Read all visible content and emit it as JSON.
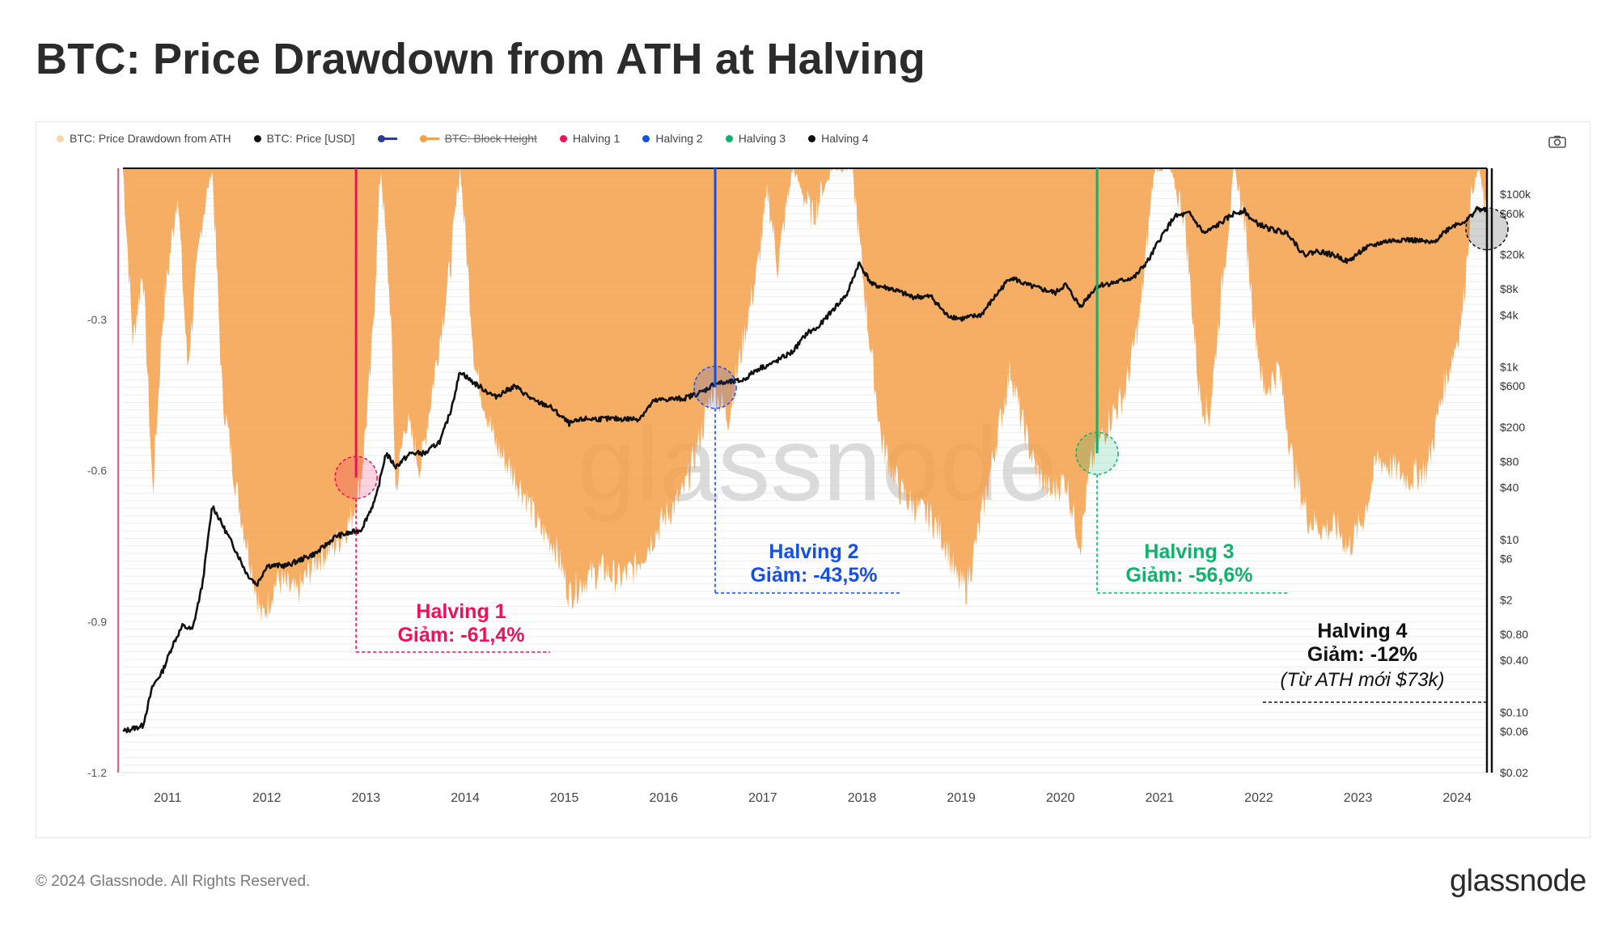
{
  "title": "BTC: Price Drawdown from ATH at Halving",
  "legend": [
    {
      "label": "BTC: Price Drawdown from ATH",
      "color": "#f8d6b0",
      "type": "dot",
      "struck": false
    },
    {
      "label": "BTC: Price [USD]",
      "color": "#111111",
      "type": "dot",
      "struck": false
    },
    {
      "label": "",
      "color": "#2b3a99",
      "type": "line",
      "struck": true
    },
    {
      "label": "BTC: Block Height",
      "color": "#f5a04a",
      "type": "line",
      "struck": true
    },
    {
      "label": "Halving 1",
      "color": "#f0105a",
      "type": "dot",
      "struck": false
    },
    {
      "label": "Halving 2",
      "color": "#1450e6",
      "type": "dot",
      "struck": false
    },
    {
      "label": "Halving 3",
      "color": "#0cb36b",
      "type": "dot",
      "struck": false
    },
    {
      "label": "Halving 4",
      "color": "#111111",
      "type": "dot",
      "struck": false
    }
  ],
  "watermark": "glassnode",
  "footer": {
    "copyright": "© 2024 Glassnode. All Rights Reserved.",
    "logo": "glassnode"
  },
  "chart_data": {
    "type": "area",
    "x_ticks": [
      "2011",
      "2012",
      "2013",
      "2014",
      "2015",
      "2016",
      "2017",
      "2018",
      "2019",
      "2020",
      "2021",
      "2022",
      "2023",
      "2024"
    ],
    "xlim": [
      2010.55,
      2024.3
    ],
    "left_axis": {
      "ticks": [
        -0.3,
        -0.6,
        -0.9,
        -1.2
      ],
      "tick_labels": [
        "-0.3",
        "-0.6",
        "-0.9",
        "-1.2"
      ],
      "ylim": [
        -1.2,
        0
      ]
    },
    "right_axis": {
      "scale": "log",
      "ylim": [
        0.02,
        200000
      ],
      "ticks": [
        100000,
        60000,
        20000,
        8000,
        4000,
        1000,
        600,
        200,
        80,
        40,
        10,
        6,
        2,
        0.8,
        0.4,
        0.1,
        0.06,
        0.02
      ],
      "tick_labels": [
        "$100k",
        "$60k",
        "$20k",
        "$8k",
        "$4k",
        "$1k",
        "$600",
        "$200",
        "$80",
        "$40",
        "$10",
        "$6",
        "$2",
        "$0.80",
        "$0.40",
        "$0.10",
        "$0.06",
        "$0.02"
      ]
    },
    "series": [
      {
        "name": "BTC: Price Drawdown from ATH",
        "color": "#f5a04a",
        "points": [
          [
            2010.55,
            0
          ],
          [
            2010.65,
            -0.35
          ],
          [
            2010.75,
            -0.2
          ],
          [
            2010.85,
            -0.65
          ],
          [
            2010.95,
            -0.3
          ],
          [
            2011.1,
            -0.05
          ],
          [
            2011.2,
            -0.4
          ],
          [
            2011.35,
            -0.1
          ],
          [
            2011.45,
            0
          ],
          [
            2011.55,
            -0.45
          ],
          [
            2011.7,
            -0.65
          ],
          [
            2011.85,
            -0.8
          ],
          [
            2011.95,
            -0.9
          ],
          [
            2012.1,
            -0.82
          ],
          [
            2012.3,
            -0.85
          ],
          [
            2012.5,
            -0.78
          ],
          [
            2012.7,
            -0.75
          ],
          [
            2012.85,
            -0.7
          ],
          [
            2012.95,
            -0.62
          ],
          [
            2013.05,
            -0.4
          ],
          [
            2013.15,
            0
          ],
          [
            2013.25,
            -0.3
          ],
          [
            2013.3,
            -0.65
          ],
          [
            2013.4,
            -0.5
          ],
          [
            2013.55,
            -0.6
          ],
          [
            2013.7,
            -0.4
          ],
          [
            2013.85,
            -0.2
          ],
          [
            2013.95,
            0
          ],
          [
            2014.1,
            -0.4
          ],
          [
            2014.3,
            -0.55
          ],
          [
            2014.45,
            -0.6
          ],
          [
            2014.6,
            -0.65
          ],
          [
            2014.75,
            -0.72
          ],
          [
            2014.9,
            -0.75
          ],
          [
            2015.05,
            -0.85
          ],
          [
            2015.2,
            -0.82
          ],
          [
            2015.4,
            -0.8
          ],
          [
            2015.55,
            -0.82
          ],
          [
            2015.7,
            -0.8
          ],
          [
            2015.85,
            -0.75
          ],
          [
            2016.0,
            -0.7
          ],
          [
            2016.2,
            -0.65
          ],
          [
            2016.35,
            -0.55
          ],
          [
            2016.5,
            -0.44
          ],
          [
            2016.65,
            -0.5
          ],
          [
            2016.8,
            -0.35
          ],
          [
            2016.95,
            -0.2
          ],
          [
            2017.05,
            -0.05
          ],
          [
            2017.15,
            -0.2
          ],
          [
            2017.3,
            0
          ],
          [
            2017.5,
            -0.1
          ],
          [
            2017.7,
            0
          ],
          [
            2017.9,
            0
          ],
          [
            2018.05,
            -0.3
          ],
          [
            2018.2,
            -0.55
          ],
          [
            2018.4,
            -0.65
          ],
          [
            2018.55,
            -0.68
          ],
          [
            2018.7,
            -0.7
          ],
          [
            2018.85,
            -0.75
          ],
          [
            2018.95,
            -0.82
          ],
          [
            2019.05,
            -0.84
          ],
          [
            2019.2,
            -0.7
          ],
          [
            2019.4,
            -0.5
          ],
          [
            2019.5,
            -0.4
          ],
          [
            2019.6,
            -0.5
          ],
          [
            2019.75,
            -0.6
          ],
          [
            2019.9,
            -0.65
          ],
          [
            2020.05,
            -0.62
          ],
          [
            2020.2,
            -0.75
          ],
          [
            2020.3,
            -0.6
          ],
          [
            2020.37,
            -0.56
          ],
          [
            2020.5,
            -0.5
          ],
          [
            2020.65,
            -0.45
          ],
          [
            2020.8,
            -0.3
          ],
          [
            2020.95,
            0
          ],
          [
            2021.1,
            0
          ],
          [
            2021.25,
            -0.1
          ],
          [
            2021.4,
            -0.45
          ],
          [
            2021.5,
            -0.5
          ],
          [
            2021.6,
            -0.3
          ],
          [
            2021.75,
            0
          ],
          [
            2021.85,
            -0.1
          ],
          [
            2021.95,
            -0.3
          ],
          [
            2022.05,
            -0.45
          ],
          [
            2022.2,
            -0.4
          ],
          [
            2022.35,
            -0.6
          ],
          [
            2022.5,
            -0.7
          ],
          [
            2022.65,
            -0.72
          ],
          [
            2022.8,
            -0.72
          ],
          [
            2022.9,
            -0.76
          ],
          [
            2023.05,
            -0.7
          ],
          [
            2023.2,
            -0.58
          ],
          [
            2023.35,
            -0.6
          ],
          [
            2023.5,
            -0.62
          ],
          [
            2023.7,
            -0.6
          ],
          [
            2023.85,
            -0.45
          ],
          [
            2023.95,
            -0.38
          ],
          [
            2024.05,
            -0.3
          ],
          [
            2024.15,
            -0.05
          ],
          [
            2024.22,
            0
          ],
          [
            2024.3,
            -0.12
          ]
        ]
      },
      {
        "name": "BTC: Price [USD]",
        "color": "#111111",
        "points": [
          [
            2010.55,
            0.06
          ],
          [
            2010.75,
            0.07
          ],
          [
            2010.85,
            0.2
          ],
          [
            2010.95,
            0.3
          ],
          [
            2011.05,
            0.6
          ],
          [
            2011.15,
            1
          ],
          [
            2011.25,
            0.9
          ],
          [
            2011.35,
            3
          ],
          [
            2011.45,
            25
          ],
          [
            2011.55,
            15
          ],
          [
            2011.7,
            7
          ],
          [
            2011.8,
            4
          ],
          [
            2011.9,
            3
          ],
          [
            2012.0,
            5
          ],
          [
            2012.2,
            5
          ],
          [
            2012.5,
            7
          ],
          [
            2012.7,
            11
          ],
          [
            2012.85,
            12
          ],
          [
            2012.95,
            13
          ],
          [
            2013.1,
            30
          ],
          [
            2013.2,
            100
          ],
          [
            2013.3,
            70
          ],
          [
            2013.45,
            100
          ],
          [
            2013.6,
            100
          ],
          [
            2013.75,
            140
          ],
          [
            2013.85,
            300
          ],
          [
            2013.95,
            900
          ],
          [
            2014.05,
            700
          ],
          [
            2014.3,
            450
          ],
          [
            2014.5,
            600
          ],
          [
            2014.7,
            400
          ],
          [
            2014.85,
            350
          ],
          [
            2015.05,
            220
          ],
          [
            2015.2,
            250
          ],
          [
            2015.5,
            250
          ],
          [
            2015.75,
            250
          ],
          [
            2015.9,
            400
          ],
          [
            2016.0,
            420
          ],
          [
            2016.2,
            430
          ],
          [
            2016.4,
            520
          ],
          [
            2016.52,
            650
          ],
          [
            2016.6,
            650
          ],
          [
            2016.8,
            700
          ],
          [
            2016.95,
            950
          ],
          [
            2017.1,
            1100
          ],
          [
            2017.3,
            1500
          ],
          [
            2017.45,
            2500
          ],
          [
            2017.55,
            2800
          ],
          [
            2017.7,
            4500
          ],
          [
            2017.85,
            7000
          ],
          [
            2017.97,
            16000
          ],
          [
            2018.1,
            9000
          ],
          [
            2018.3,
            8000
          ],
          [
            2018.5,
            6500
          ],
          [
            2018.7,
            6500
          ],
          [
            2018.85,
            4000
          ],
          [
            2019.0,
            3600
          ],
          [
            2019.2,
            4000
          ],
          [
            2019.4,
            8000
          ],
          [
            2019.5,
            11000
          ],
          [
            2019.65,
            9000
          ],
          [
            2019.8,
            8000
          ],
          [
            2019.95,
            7200
          ],
          [
            2020.05,
            9000
          ],
          [
            2020.2,
            5000
          ],
          [
            2020.37,
            8700
          ],
          [
            2020.55,
            9500
          ],
          [
            2020.75,
            11000
          ],
          [
            2020.9,
            18000
          ],
          [
            2021.0,
            30000
          ],
          [
            2021.15,
            55000
          ],
          [
            2021.3,
            60000
          ],
          [
            2021.45,
            35000
          ],
          [
            2021.6,
            45000
          ],
          [
            2021.75,
            60000
          ],
          [
            2021.85,
            65000
          ],
          [
            2021.95,
            48000
          ],
          [
            2022.1,
            40000
          ],
          [
            2022.3,
            35000
          ],
          [
            2022.45,
            20000
          ],
          [
            2022.6,
            22000
          ],
          [
            2022.8,
            19000
          ],
          [
            2022.9,
            16500
          ],
          [
            2023.05,
            23000
          ],
          [
            2023.25,
            28000
          ],
          [
            2023.45,
            30000
          ],
          [
            2023.6,
            29000
          ],
          [
            2023.75,
            27000
          ],
          [
            2023.85,
            35000
          ],
          [
            2023.95,
            43000
          ],
          [
            2024.1,
            50000
          ],
          [
            2024.2,
            68000
          ],
          [
            2024.3,
            64000
          ]
        ]
      }
    ],
    "halvings": [
      {
        "name": "Halving 1",
        "x": 2012.9,
        "drawdown": -0.614,
        "color": "#f0105a",
        "label": "Halving 1",
        "label2": "Giảm: -61,4%"
      },
      {
        "name": "Halving 2",
        "x": 2016.52,
        "drawdown": -0.435,
        "color": "#1450e6",
        "label": "Halving 2",
        "label2": "Giảm: -43,5%"
      },
      {
        "name": "Halving 3",
        "x": 2020.37,
        "drawdown": -0.566,
        "color": "#0cb36b",
        "label": "Halving 3",
        "label2": "Giảm: -56,6%"
      },
      {
        "name": "Halving 4",
        "x": 2024.3,
        "drawdown": -0.12,
        "color": "#111111",
        "label": "Halving 4",
        "label2": "Giảm: -12%",
        "label3": "(Từ ATH mới $73k)"
      }
    ]
  }
}
